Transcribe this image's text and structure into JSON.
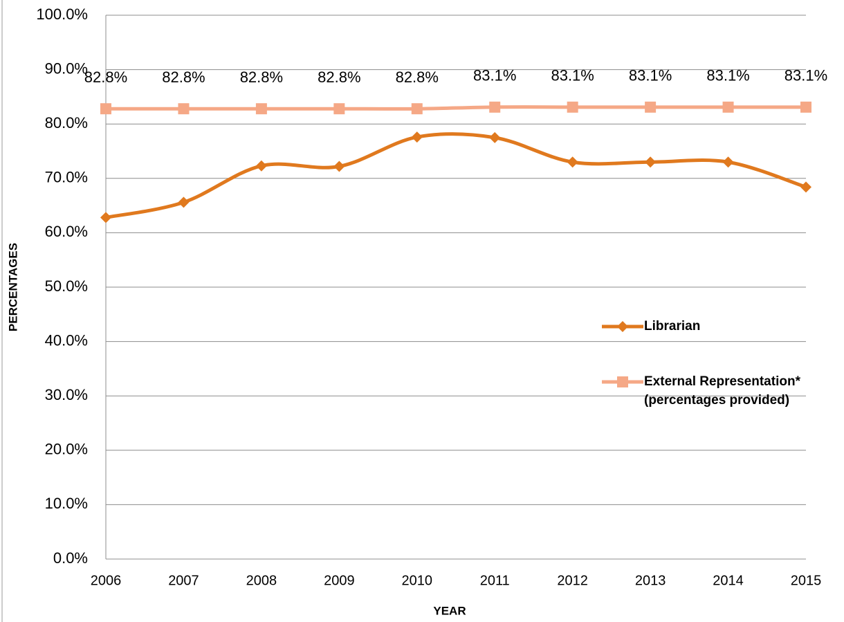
{
  "chart_data": {
    "type": "line",
    "x_label": "YEAR",
    "y_label": "PERCENTAGES",
    "x": [
      2006,
      2007,
      2008,
      2009,
      2010,
      2011,
      2012,
      2013,
      2014,
      2015
    ],
    "xlim": [
      2006,
      2015
    ],
    "xticks": [
      2006,
      2007,
      2008,
      2009,
      2010,
      2011,
      2012,
      2013,
      2014,
      2015
    ],
    "ylim": [
      0,
      100
    ],
    "yticks": [
      {
        "value": 0,
        "label": "0.0%"
      },
      {
        "value": 10,
        "label": "10.0%"
      },
      {
        "value": 20,
        "label": "20.0%"
      },
      {
        "value": 30,
        "label": "30.0%"
      },
      {
        "value": 40,
        "label": "40.0%"
      },
      {
        "value": 50,
        "label": "50.0%"
      },
      {
        "value": 60,
        "label": "60.0%"
      },
      {
        "value": 70,
        "label": "70.0%"
      },
      {
        "value": 80,
        "label": "80.0%"
      },
      {
        "value": 90,
        "label": "90.0%"
      },
      {
        "value": 100,
        "label": "100.0%"
      }
    ],
    "grid": true,
    "smooth": true,
    "legend": "right",
    "series": [
      {
        "name": "Librarian",
        "color": "#E0791E",
        "marker": "diamond",
        "values": [
          62.8,
          65.6,
          72.3,
          72.2,
          77.6,
          77.5,
          73.0,
          73.0,
          73.0,
          68.4
        ]
      },
      {
        "name": "External Representation* (percentages provided)",
        "color": "#F5A886",
        "marker": "square",
        "values": [
          82.8,
          82.8,
          82.8,
          82.8,
          82.8,
          83.1,
          83.1,
          83.1,
          83.1,
          83.1
        ],
        "value_labels": [
          "82.8%",
          "82.8%",
          "82.8%",
          "82.8%",
          "82.8%",
          "83.1%",
          "83.1%",
          "83.1%",
          "83.1%",
          "83.1%"
        ]
      }
    ]
  }
}
